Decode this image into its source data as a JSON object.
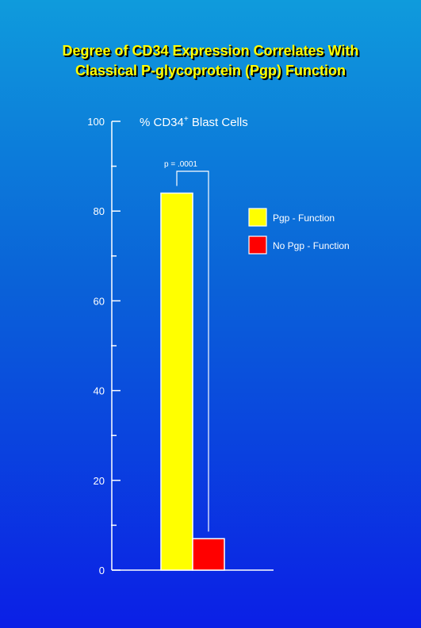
{
  "title_lines": [
    "Degree of CD34 Expression Correlates With",
    "Classical P-glycoprotein (Pgp) Function"
  ],
  "colors": {
    "text": "#ffffff",
    "title": "#ffff00",
    "axis": "#ffffff",
    "pgp": "#ffff00",
    "no_pgp": "#ff0000"
  },
  "chart_data": {
    "type": "bar",
    "title": "% CD34+ Blast Cells",
    "title_main": "% CD34",
    "title_sup": "+",
    "title_rest": " Blast Cells",
    "ylim": [
      0,
      100
    ],
    "yticks": [
      0,
      20,
      40,
      60,
      80,
      100
    ],
    "ytick_labels": [
      "0",
      "20",
      "40",
      "60",
      "80",
      "100"
    ],
    "minor_ticks": [
      10,
      30,
      50,
      70,
      90
    ],
    "grid": false,
    "legend_position": "right",
    "series": [
      {
        "name": "Pgp - Function",
        "value": 84,
        "color": "#ffff00"
      },
      {
        "name": "No Pgp - Function",
        "value": 7,
        "color": "#ff0000"
      }
    ],
    "annotation": {
      "text": "p = .0001"
    }
  }
}
